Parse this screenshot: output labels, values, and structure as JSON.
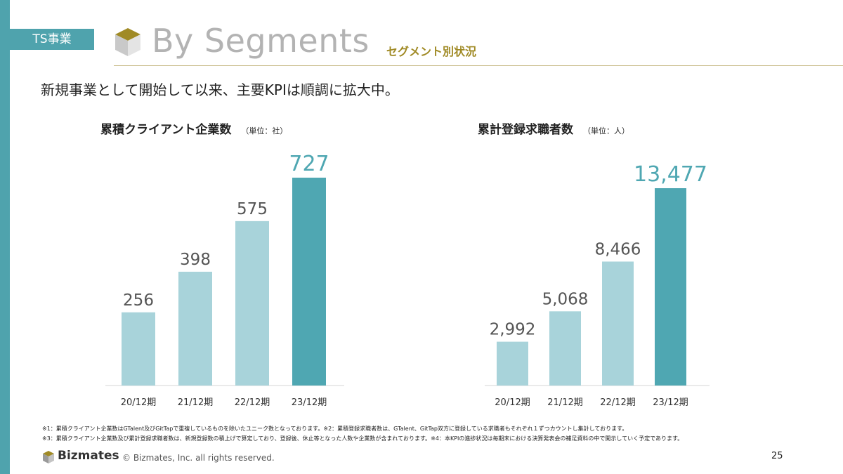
{
  "header": {
    "tag": "TS事業",
    "title": "By Segments",
    "subtitle": "セグメント別状況"
  },
  "lead": "新規事業として開始して以来、主要KPIは順調に拡大中。",
  "colors": {
    "accent": "#4fa3ad",
    "bar_light": "#a8d3da",
    "bar_dark": "#4fa7b2",
    "gold": "#a08a25"
  },
  "chart_data": [
    {
      "type": "bar",
      "title": "累積クライアント企業数",
      "unit": "（単位：社）",
      "categories": [
        "20/12期",
        "21/12期",
        "22/12期",
        "23/12期"
      ],
      "values": [
        256,
        398,
        575,
        727
      ],
      "labels": [
        "256",
        "398",
        "575",
        "727"
      ],
      "highlight": 3,
      "ylim": [
        0,
        727
      ]
    },
    {
      "type": "bar",
      "title": "累計登録求職者数",
      "unit": "（単位：人）",
      "categories": [
        "20/12期",
        "21/12期",
        "22/12期",
        "23/12期"
      ],
      "values": [
        2992,
        5068,
        8466,
        13477
      ],
      "labels": [
        "2,992",
        "5,068",
        "8,466",
        "13,477"
      ],
      "highlight": 3,
      "ylim": [
        0,
        13477
      ]
    }
  ],
  "notes": {
    "line1": "※1：累積クライアント企業数はGTalent及びGitTapで重複しているものを除いたユニーク数となっております。※2：累積登録求職者数は、GTalent、GitTap双方に登録している求職者もそれぞれ１ずつカウントし集計しております。",
    "line2": "※3：累積クライアント企業数及び累計登録求職者数は、新規登録数の積上げで算定しており、登録後、休止等となった人数や企業数が含まれております。※4：本KPIの進捗状況は毎期末における決算発表会の補足資料の中で開示していく予定であります。"
  },
  "footer": {
    "brand": "Bizmates",
    "copyright": "© Bizmates, Inc. all rights reserved.",
    "page": "25"
  }
}
